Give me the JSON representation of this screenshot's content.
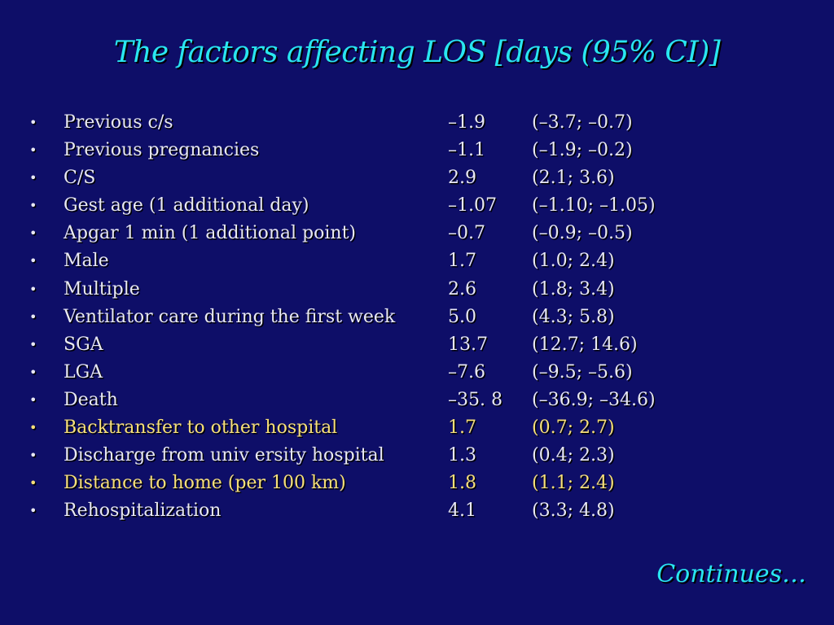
{
  "slide": {
    "title": "The factors affecting LOS [days (95% CI)]",
    "bullet_char": "•",
    "rows": [
      {
        "label": "Previous c/s",
        "estimate": "–1.9",
        "ci": "(–3.7; –0.7)",
        "highlight": false
      },
      {
        "label": "Previous pregnancies",
        "estimate": "–1.1",
        "ci": "(–1.9; –0.2)",
        "highlight": false
      },
      {
        "label": "C/S",
        "estimate": "2.9",
        "ci": "(2.1; 3.6)",
        "highlight": false
      },
      {
        "label": "Gest age (1 additional day)",
        "estimate": "–1.07",
        "ci": "(–1.10; –1.05)",
        "highlight": false
      },
      {
        "label": "Apgar 1 min (1 additional point)",
        "estimate": "–0.7",
        "ci": "(–0.9; –0.5)",
        "highlight": false
      },
      {
        "label": "Male",
        "estimate": "1.7",
        "ci": "(1.0; 2.4)",
        "highlight": false
      },
      {
        "label": "Multiple",
        "estimate": "2.6",
        "ci": "(1.8; 3.4)",
        "highlight": false
      },
      {
        "label": "Ventilator care during the first week",
        "estimate": "5.0",
        "ci": "(4.3; 5.8)",
        "highlight": false
      },
      {
        "label": "SGA",
        "estimate": "13.7",
        "ci": "(12.7; 14.6)",
        "highlight": false
      },
      {
        "label": "LGA",
        "estimate": "–7.6",
        "ci": "(–9.5; –5.6)",
        "highlight": false
      },
      {
        "label": "Death",
        "estimate": "–35. 8",
        "ci": "(–36.9; –34.6)",
        "highlight": false
      },
      {
        "label": "Backtransfer to other hospital",
        "estimate": "1.7",
        "ci": "(0.7; 2.7)",
        "highlight": true
      },
      {
        "label": "Discharge from univ ersity hospital",
        "estimate": "1.3",
        "ci": "(0.4; 2.3)",
        "highlight": false
      },
      {
        "label": "Distance to home  (per 100 km)",
        "estimate": "1.8",
        "ci": "(1.1; 2.4)",
        "highlight": true
      },
      {
        "label": "Rehospitalization",
        "estimate": "4.1",
        "ci": "(3.3; 4.8)",
        "highlight": false
      }
    ],
    "footer": "Continues…"
  },
  "colors": {
    "background": "#0e0e68",
    "title": "#29e6f0",
    "text": "#e8e8f4",
    "highlight": "#f7e07a"
  }
}
